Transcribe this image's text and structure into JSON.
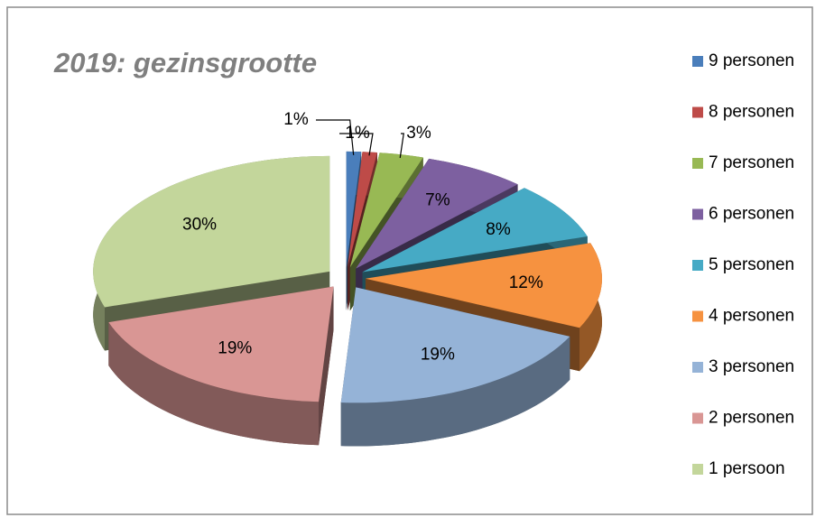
{
  "chart_data": {
    "type": "pie",
    "title": "2019: gezinsgrootte",
    "categories": [
      "9 personen",
      "8 personen",
      "7 personen",
      "6 personen",
      "5 personen",
      "4 personen",
      "3 personen",
      "2 personen",
      "1 persoon"
    ],
    "values": [
      1,
      1,
      3,
      7,
      8,
      12,
      19,
      19,
      30
    ],
    "value_labels": [
      "1%",
      "1%",
      "3%",
      "7%",
      "8%",
      "12%",
      "19%",
      "19%",
      "30%"
    ],
    "colors": [
      "#4a7ebb",
      "#be4b48",
      "#98b954",
      "#7d60a0",
      "#46aac5",
      "#f69240",
      "#95b3d7",
      "#d99694",
      "#c3d69b"
    ],
    "legend": "right"
  }
}
